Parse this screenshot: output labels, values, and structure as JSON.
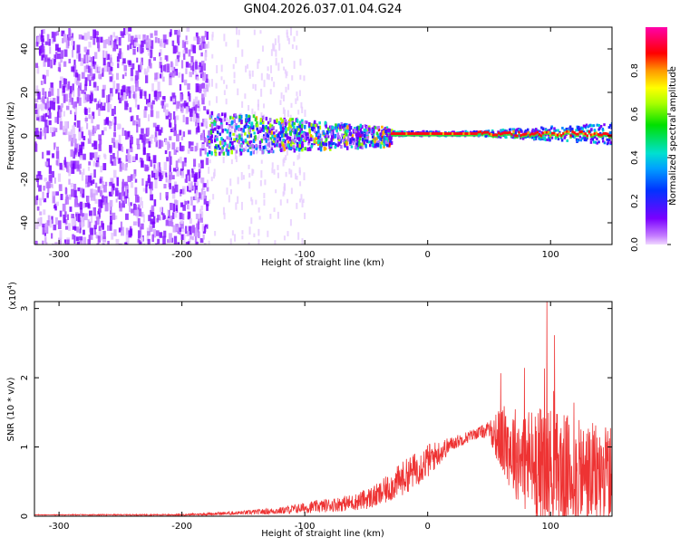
{
  "title": "GN04.2026.037.01.04.G24",
  "chart_data": [
    {
      "type": "heatmap",
      "title": "GN04.2026.037.01.04.G24",
      "xlabel": "Height of straight line (km)",
      "ylabel": "Frequency (Hz)",
      "xlim": [
        -320,
        150
      ],
      "ylim": [
        -50,
        50
      ],
      "x_ticks": [
        "-300",
        "-200",
        "-100",
        "0",
        "100"
      ],
      "y_ticks": [
        "-40",
        "-20",
        "0",
        "20",
        "40"
      ],
      "colorbar": {
        "label": "Normalized spectral amplitude",
        "range": [
          0,
          1
        ],
        "ticks": [
          "0.0",
          "0.2",
          "0.4",
          "0.6",
          "0.8"
        ]
      },
      "structure": {
        "noise_region_x": [
          -320,
          -180
        ],
        "transition_x": [
          -180,
          -30
        ],
        "signal_line_frequency": 1,
        "signal_region_x": [
          -30,
          150
        ]
      }
    },
    {
      "type": "line",
      "xlabel": "Height of straight line (km)",
      "ylabel": "SNR (10 * v/v)",
      "yscale_label": "(x10",
      "yscale_exp": "4",
      "xlim": [
        -320,
        150
      ],
      "ylim": [
        0,
        3.1
      ],
      "x_ticks": [
        "-300",
        "-200",
        "-100",
        "0",
        "100"
      ],
      "y_ticks": [
        "0",
        "1",
        "2",
        "3"
      ],
      "series": [
        {
          "color": "#ee3333",
          "envelope_x": [
            -320,
            -200,
            -150,
            -120,
            -100,
            -60,
            -40,
            -20,
            0,
            20,
            40,
            50,
            60,
            80,
            100,
            120,
            150
          ],
          "envelope_mean": [
            0.02,
            0.02,
            0.05,
            0.08,
            0.12,
            0.2,
            0.3,
            0.55,
            0.8,
            1.05,
            1.2,
            1.25,
            1.1,
            0.8,
            0.7,
            0.6,
            0.6
          ],
          "envelope_spread": [
            0.005,
            0.01,
            0.03,
            0.05,
            0.08,
            0.12,
            0.18,
            0.25,
            0.25,
            0.1,
            0.08,
            0.12,
            0.5,
            0.8,
            0.9,
            0.8,
            0.7
          ],
          "peak_value": 3.1,
          "peak_x": 97
        }
      ]
    }
  ]
}
